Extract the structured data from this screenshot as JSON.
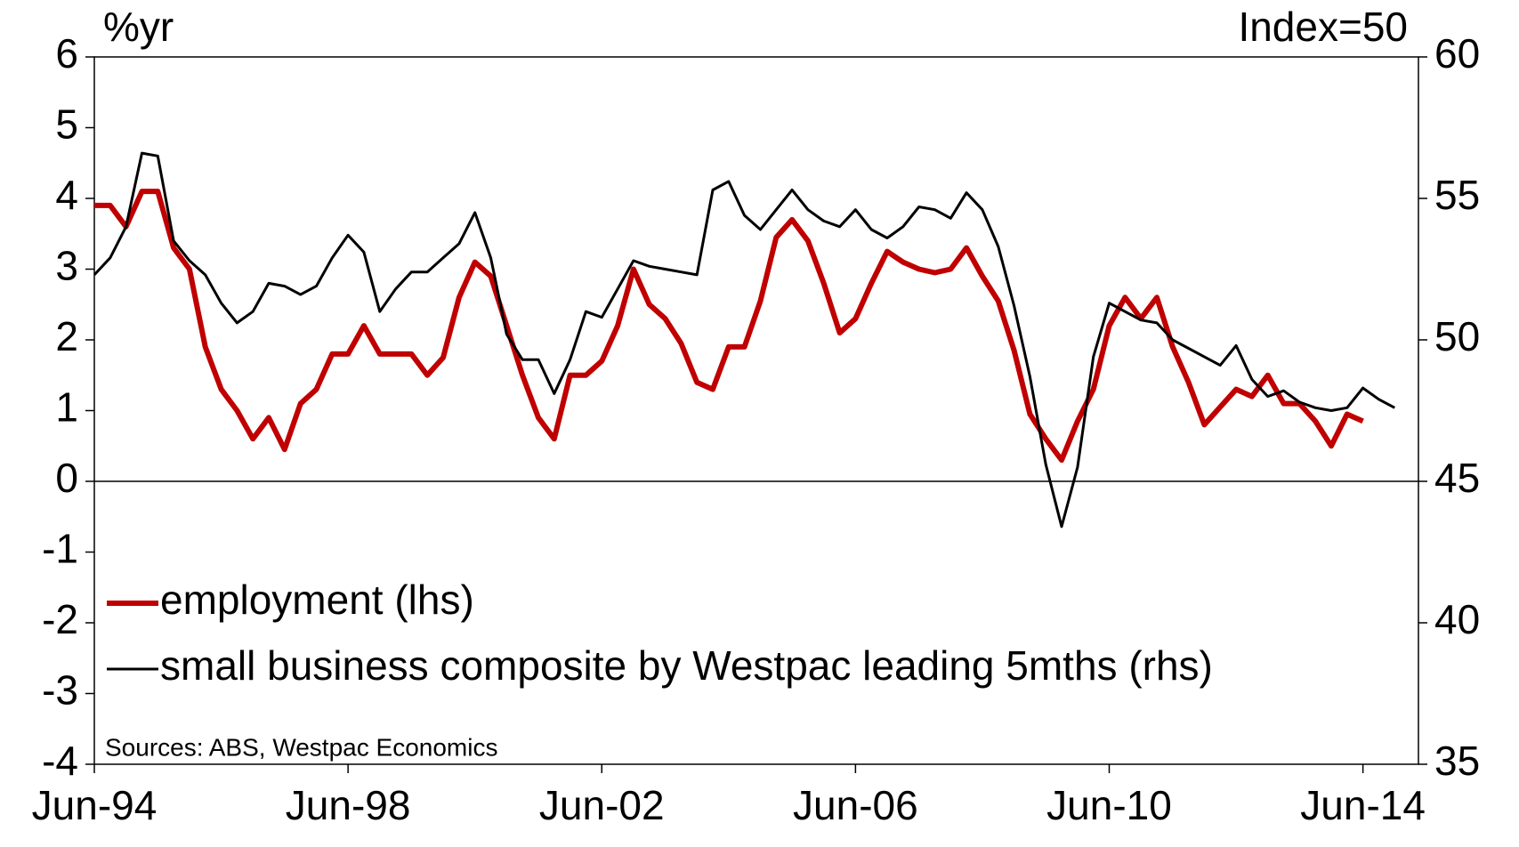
{
  "chart_data": {
    "type": "line",
    "axis_label_left": "%yr",
    "axis_label_right": "Index=50",
    "source": "Sources: ABS, Westpac Economics",
    "categories": [
      "Jun-94",
      null,
      null,
      null,
      null,
      null,
      null,
      null,
      null,
      null,
      null,
      null,
      null,
      null,
      null,
      null,
      "Jun-98",
      null,
      null,
      null,
      null,
      null,
      null,
      null,
      null,
      null,
      null,
      null,
      null,
      null,
      null,
      null,
      "Jun-02",
      null,
      null,
      null,
      null,
      null,
      null,
      null,
      null,
      null,
      null,
      null,
      null,
      null,
      null,
      null,
      "Jun-06",
      null,
      null,
      null,
      null,
      null,
      null,
      null,
      null,
      null,
      null,
      null,
      null,
      null,
      null,
      null,
      "Jun-10",
      null,
      null,
      null,
      null,
      null,
      null,
      null,
      null,
      null,
      null,
      null,
      null,
      null,
      null,
      null,
      "Jun-14",
      null,
      null
    ],
    "series": [
      {
        "name": "employment (lhs)",
        "color": "#c00000",
        "axis": "y",
        "values": [
          3.9,
          3.9,
          3.6,
          4.1,
          4.1,
          3.3,
          3.0,
          1.9,
          1.3,
          1.0,
          0.6,
          0.9,
          0.45,
          1.1,
          1.3,
          1.8,
          1.8,
          2.2,
          1.8,
          1.8,
          1.8,
          1.5,
          1.75,
          2.6,
          3.1,
          2.9,
          2.2,
          1.5,
          0.9,
          0.6,
          1.5,
          1.5,
          1.7,
          2.2,
          3.0,
          2.5,
          2.3,
          1.95,
          1.4,
          1.3,
          1.9,
          1.9,
          2.55,
          3.45,
          3.7,
          3.4,
          2.8,
          2.1,
          2.3,
          2.8,
          3.25,
          3.1,
          3.0,
          2.95,
          3.0,
          3.3,
          2.9,
          2.55,
          1.85,
          0.95,
          0.6,
          0.3,
          0.85,
          1.3,
          2.2,
          2.6,
          2.3,
          2.6,
          1.9,
          1.4,
          0.8,
          1.05,
          1.3,
          1.2,
          1.5,
          1.1,
          1.1,
          0.85,
          0.5,
          0.95,
          0.85,
          null,
          null
        ]
      },
      {
        "name": "small business composite by Westpac leading 5mths (rhs)",
        "color": "#000000",
        "axis": "y2",
        "values": [
          52.3,
          52.9,
          54.0,
          56.6,
          56.5,
          53.5,
          52.8,
          52.3,
          51.3,
          50.6,
          51.0,
          52.0,
          51.9,
          51.6,
          51.9,
          52.9,
          53.7,
          53.1,
          51.0,
          51.8,
          52.4,
          52.4,
          52.9,
          53.4,
          54.5,
          52.9,
          50.2,
          49.3,
          49.3,
          48.1,
          49.3,
          51.0,
          50.8,
          51.8,
          52.8,
          52.6,
          52.5,
          52.4,
          52.3,
          55.3,
          55.6,
          54.4,
          53.9,
          54.6,
          55.3,
          54.6,
          54.2,
          54.0,
          54.6,
          53.9,
          53.6,
          54.0,
          54.7,
          54.6,
          54.3,
          55.2,
          54.6,
          53.3,
          51.2,
          48.7,
          45.6,
          43.4,
          45.5,
          49.4,
          51.3,
          51.0,
          50.7,
          50.6,
          50.0,
          49.7,
          49.4,
          49.1,
          49.8,
          48.6,
          48.0,
          48.2,
          47.8,
          47.6,
          47.5,
          47.6,
          48.3,
          47.9,
          47.6
        ]
      }
    ],
    "ylim": [
      -4,
      6
    ],
    "yticks": [
      -4,
      -3,
      -2,
      -1,
      0,
      1,
      2,
      3,
      4,
      5,
      6
    ],
    "y2lim": [
      35,
      60
    ],
    "y2ticks": [
      35,
      40,
      45,
      50,
      55,
      60
    ],
    "legend": "lower-left",
    "grid": false
  }
}
